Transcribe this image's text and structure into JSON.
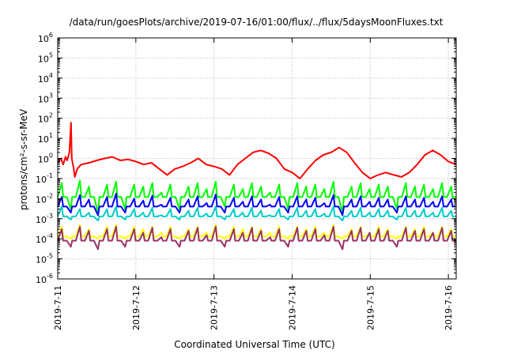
{
  "chart_data": {
    "type": "line",
    "title": "/data/run/goesPlots/archive/2019-07-16/01:00/flux/../flux/5daysMoonFluxes.txt",
    "xlabel": "Coordinated Universal Time (UTC)",
    "ylabel": "protons/cm²-s-sr-MeV",
    "yscale": "log",
    "ylim": [
      1e-06,
      1000000.0
    ],
    "xlim": [
      0,
      5.1
    ],
    "grid": true,
    "legend": "none",
    "x_ticks": [
      {
        "x": 0,
        "label": "2019-7-11"
      },
      {
        "x": 1,
        "label": "2019-7-12"
      },
      {
        "x": 2,
        "label": "2019-7-13"
      },
      {
        "x": 3,
        "label": "2019-7-14"
      },
      {
        "x": 4,
        "label": "2019-7-15"
      },
      {
        "x": 5,
        "label": "2019-7-16"
      }
    ],
    "y_ticks": [
      {
        "exp": -6,
        "label": "-6"
      },
      {
        "exp": -5,
        "label": "-5"
      },
      {
        "exp": -4,
        "label": "-4"
      },
      {
        "exp": -3,
        "label": "-3"
      },
      {
        "exp": -2,
        "label": "-2"
      },
      {
        "exp": -1,
        "label": "-1"
      },
      {
        "exp": 0,
        "label": "0"
      },
      {
        "exp": 1,
        "label": "1"
      },
      {
        "exp": 2,
        "label": "2"
      },
      {
        "exp": 3,
        "label": "3"
      },
      {
        "exp": 4,
        "label": "4"
      },
      {
        "exp": 5,
        "label": "5"
      },
      {
        "exp": 6,
        "label": "6"
      }
    ],
    "series": [
      {
        "color": "#ff0000",
        "x": [
          0,
          0.04,
          0.07,
          0.1,
          0.12,
          0.15,
          0.17,
          0.18,
          0.19,
          0.2,
          0.22,
          0.25,
          0.3,
          0.4,
          0.5,
          0.6,
          0.7,
          0.8,
          0.9,
          1.0,
          1.1,
          1.2,
          1.3,
          1.4,
          1.5,
          1.6,
          1.7,
          1.8,
          1.9,
          2.0,
          2.1,
          2.2,
          2.3,
          2.4,
          2.5,
          2.6,
          2.7,
          2.8,
          2.9,
          3.0,
          3.1,
          3.2,
          3.3,
          3.4,
          3.5,
          3.6,
          3.7,
          3.8,
          3.9,
          4.0,
          4.1,
          4.2,
          4.3,
          4.4,
          4.5,
          4.6,
          4.7,
          4.8,
          4.9,
          5.0,
          5.1
        ],
        "y": [
          0.6,
          1.0,
          0.5,
          1.2,
          0.8,
          2.0,
          60,
          1.0,
          0.6,
          0.4,
          0.12,
          0.3,
          0.5,
          0.6,
          0.8,
          1.0,
          1.2,
          0.8,
          0.9,
          0.7,
          0.5,
          0.6,
          0.3,
          0.15,
          0.3,
          0.4,
          0.6,
          1.0,
          0.5,
          0.4,
          0.3,
          0.15,
          0.5,
          1.0,
          2.0,
          2.5,
          1.8,
          1.0,
          0.3,
          0.2,
          0.1,
          0.3,
          0.8,
          1.5,
          2.0,
          3.5,
          2.0,
          0.6,
          0.2,
          0.1,
          0.15,
          0.2,
          0.15,
          0.12,
          0.2,
          0.5,
          1.5,
          2.5,
          1.5,
          0.7,
          0.5
        ]
      },
      {
        "color": "#00ff00",
        "base": 0.012,
        "spikes": [
          0.06,
          0.003,
          0.08,
          0.04,
          0.002,
          0.05,
          0.07,
          0.003,
          0.05,
          0.04,
          0.06,
          0.02,
          0.05,
          0.003,
          0.04,
          0.06,
          0.03,
          0.07,
          0.004,
          0.05,
          0.03,
          0.06,
          0.04,
          0.02,
          0.05,
          0.003,
          0.06,
          0.04,
          0.05,
          0.03,
          0.07,
          0.002,
          0.04,
          0.06,
          0.03,
          0.05,
          0.04,
          0.003,
          0.06,
          0.04,
          0.05,
          0.03,
          0.06,
          0.04
        ]
      },
      {
        "color": "#0000ff",
        "base": 0.004,
        "spikes": [
          0.012,
          0.002,
          0.015,
          0.009,
          0.0015,
          0.012,
          0.018,
          0.002,
          0.01,
          0.008,
          0.014,
          0.005,
          0.011,
          0.002,
          0.009,
          0.013,
          0.006,
          0.016,
          0.002,
          0.011,
          0.007,
          0.013,
          0.009,
          0.005,
          0.012,
          0.002,
          0.013,
          0.009,
          0.011,
          0.006,
          0.015,
          0.0015,
          0.009,
          0.013,
          0.007,
          0.011,
          0.009,
          0.002,
          0.013,
          0.009,
          0.011,
          0.007,
          0.013,
          0.009
        ]
      },
      {
        "color": "#00cccc",
        "base": 0.0013,
        "spikes": [
          0.004,
          0.0009,
          0.003,
          0.002,
          0.0008,
          0.003,
          0.004,
          0.0009,
          0.003,
          0.002,
          0.0035,
          0.0015,
          0.003,
          0.0009,
          0.0025,
          0.0035,
          0.0018,
          0.004,
          0.0009,
          0.003,
          0.002,
          0.0035,
          0.0025,
          0.0015,
          0.003,
          0.0009,
          0.0035,
          0.0025,
          0.003,
          0.0018,
          0.004,
          0.0008,
          0.0025,
          0.0035,
          0.002,
          0.003,
          0.0025,
          0.0009,
          0.0035,
          0.0025,
          0.003,
          0.002,
          0.0035,
          0.0025
        ]
      },
      {
        "color": "#ffff00",
        "base": 0.00013,
        "spikes": [
          0.0004,
          0.0001,
          0.0005,
          0.0003,
          0.0001,
          0.0004,
          0.0005,
          0.0001,
          0.0004,
          0.0003,
          0.0004,
          0.0002,
          0.0004,
          0.0001,
          0.0003,
          0.0004,
          0.0002,
          0.0005,
          0.0001,
          0.0004,
          0.0003,
          0.0004,
          0.0003,
          0.0002,
          0.0004,
          0.0001,
          0.0004,
          0.0003,
          0.0004,
          0.0002,
          0.0005,
          0.0001,
          0.0003,
          0.0004,
          0.0002,
          0.0004,
          0.0003,
          0.0001,
          0.0004,
          0.0003,
          0.0004,
          0.0002,
          0.0004,
          0.0003
        ]
      },
      {
        "color": "#993366",
        "base": 8e-05,
        "spikes": [
          0.0003,
          4e-05,
          0.0004,
          0.00025,
          3e-05,
          0.0003,
          0.0004,
          4e-05,
          0.0003,
          0.0002,
          0.00035,
          0.00012,
          0.0003,
          4e-05,
          0.00025,
          0.00035,
          0.00015,
          0.0004,
          4e-05,
          0.0003,
          0.0002,
          0.00035,
          0.00025,
          0.00012,
          0.0003,
          4e-05,
          0.00035,
          0.00025,
          0.0003,
          0.00015,
          0.0004,
          3e-05,
          0.00025,
          0.00035,
          0.0002,
          0.0003,
          0.00025,
          4e-05,
          0.00035,
          0.00025,
          0.0003,
          0.0002,
          0.00035,
          0.00025
        ]
      }
    ]
  }
}
